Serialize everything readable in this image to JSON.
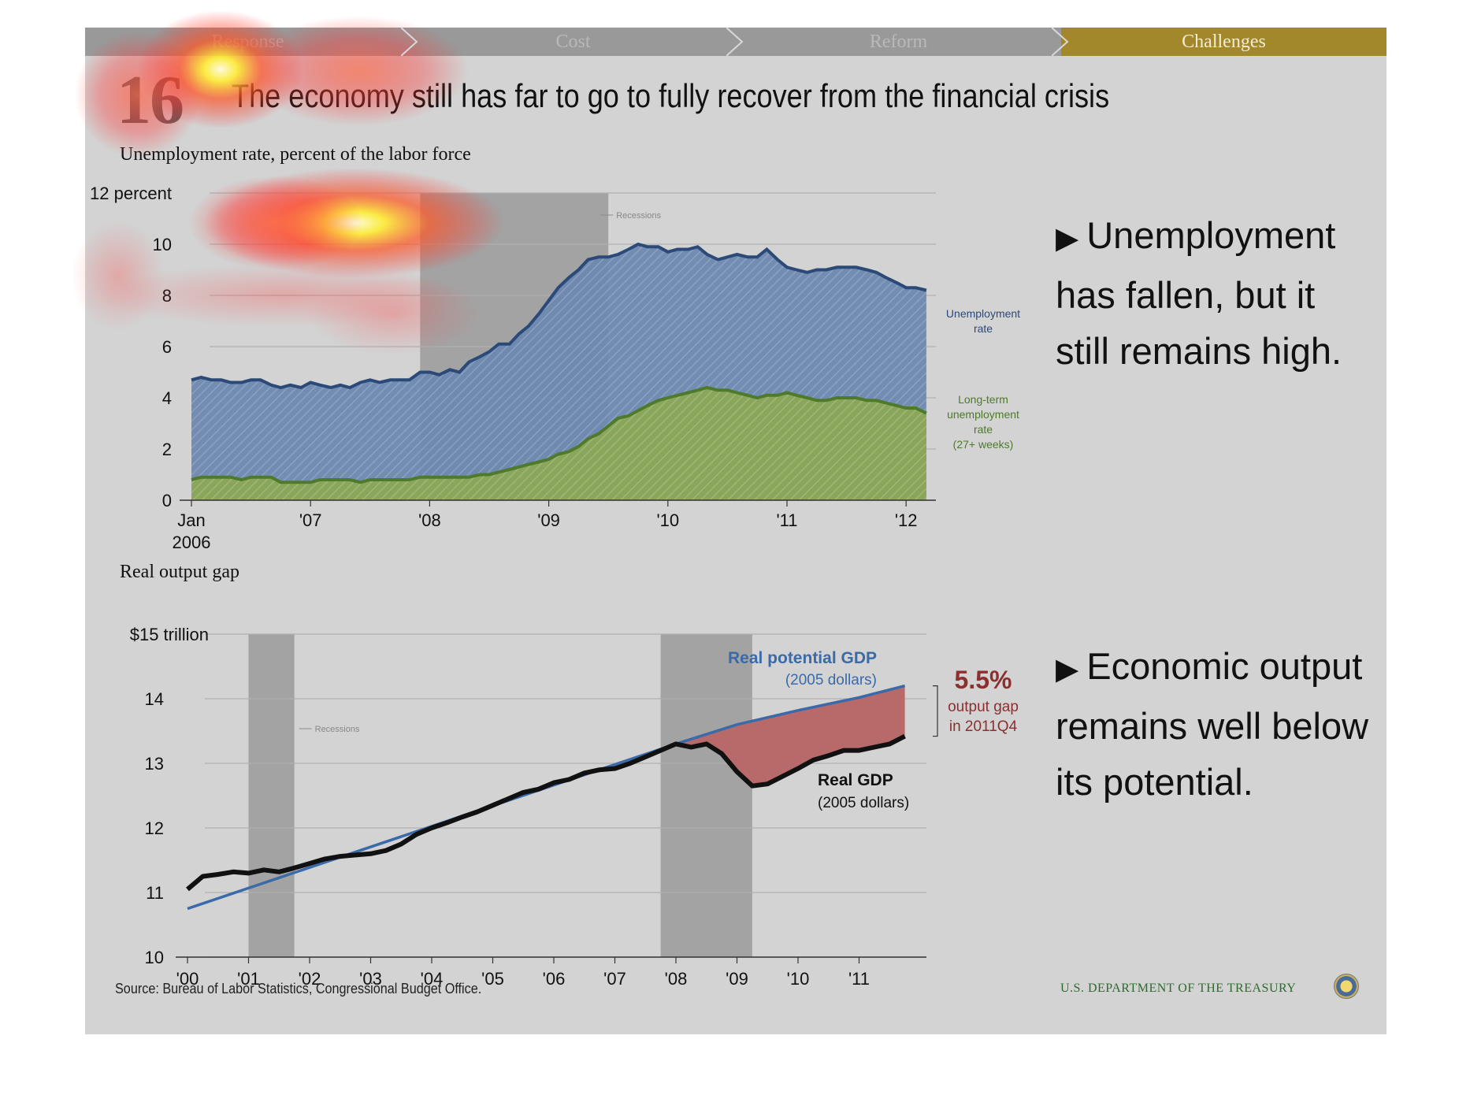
{
  "nav": {
    "tabs": [
      {
        "label": "Response",
        "active": false
      },
      {
        "label": "Cost",
        "active": false
      },
      {
        "label": "Reform",
        "active": false
      },
      {
        "label": "Challenges",
        "active": true
      }
    ]
  },
  "slide": {
    "number": "16",
    "title": "The economy still has far to go to fully recover from the financial crisis"
  },
  "bullets": [
    {
      "marker": "▶",
      "text": "Unemployment has fallen, but it still remains high."
    },
    {
      "marker": "▶",
      "text": "Economic output remains well below its potential."
    }
  ],
  "footer": {
    "source": "Source: Bureau of Labor Statistics, Congressional Budget Office.",
    "agency": "U.S. DEPARTMENT OF THE TREASURY"
  },
  "colors": {
    "unemployment_fill": "#6e88b0",
    "unemployment_line": "#2c4a78",
    "longterm_fill": "#8aa65a",
    "longterm_line": "#4e7a2c",
    "recession": "#a3a3a3",
    "potential_gdp": "#3a6aa8",
    "real_gdp": "#111111",
    "gap_fill": "#b86a6a",
    "gap_text": "#8b2f2f",
    "active_tab": "#a2882b",
    "background": "#d3d3d3"
  },
  "chart_data": [
    {
      "type": "area",
      "title": "Unemployment rate, percent of the labor force",
      "ytick_labels": [
        "0",
        "2",
        "4",
        "6",
        "8",
        "10",
        "12 percent"
      ],
      "yticks": [
        0,
        2,
        4,
        6,
        8,
        10,
        12
      ],
      "ylim": [
        0,
        12
      ],
      "xlim": [
        2006.0,
        2012.25
      ],
      "xtick_labels": [
        {
          "x": 2006.0,
          "line1": "Jan",
          "line2": "2006"
        },
        {
          "x": 2007.0,
          "line1": "'07",
          "line2": ""
        },
        {
          "x": 2008.0,
          "line1": "'08",
          "line2": ""
        },
        {
          "x": 2009.0,
          "line1": "'09",
          "line2": ""
        },
        {
          "x": 2010.0,
          "line1": "'10",
          "line2": ""
        },
        {
          "x": 2011.0,
          "line1": "'11",
          "line2": ""
        },
        {
          "x": 2012.0,
          "line1": "'12",
          "line2": ""
        }
      ],
      "recession": {
        "start": 2007.92,
        "end": 2009.5,
        "label": "Recessions"
      },
      "grid": true,
      "series": [
        {
          "name": "Unemployment rate",
          "x": [
            2006.0,
            2006.08,
            2006.17,
            2006.25,
            2006.33,
            2006.42,
            2006.5,
            2006.58,
            2006.67,
            2006.75,
            2006.83,
            2006.92,
            2007.0,
            2007.08,
            2007.17,
            2007.25,
            2007.33,
            2007.42,
            2007.5,
            2007.58,
            2007.67,
            2007.75,
            2007.83,
            2007.92,
            2008.0,
            2008.08,
            2008.17,
            2008.25,
            2008.33,
            2008.42,
            2008.5,
            2008.58,
            2008.67,
            2008.75,
            2008.83,
            2008.92,
            2009.0,
            2009.08,
            2009.17,
            2009.25,
            2009.33,
            2009.42,
            2009.5,
            2009.58,
            2009.67,
            2009.75,
            2009.83,
            2009.92,
            2010.0,
            2010.08,
            2010.17,
            2010.25,
            2010.33,
            2010.42,
            2010.5,
            2010.58,
            2010.67,
            2010.75,
            2010.83,
            2010.92,
            2011.0,
            2011.08,
            2011.17,
            2011.25,
            2011.33,
            2011.42,
            2011.5,
            2011.58,
            2011.67,
            2011.75,
            2011.83,
            2011.92,
            2012.0,
            2012.08,
            2012.17
          ],
          "values": [
            4.7,
            4.8,
            4.7,
            4.7,
            4.6,
            4.6,
            4.7,
            4.7,
            4.5,
            4.4,
            4.5,
            4.4,
            4.6,
            4.5,
            4.4,
            4.5,
            4.4,
            4.6,
            4.7,
            4.6,
            4.7,
            4.7,
            4.7,
            5.0,
            5.0,
            4.9,
            5.1,
            5.0,
            5.4,
            5.6,
            5.8,
            6.1,
            6.1,
            6.5,
            6.8,
            7.3,
            7.8,
            8.3,
            8.7,
            9.0,
            9.4,
            9.5,
            9.5,
            9.6,
            9.8,
            10.0,
            9.9,
            9.9,
            9.7,
            9.8,
            9.8,
            9.9,
            9.6,
            9.4,
            9.5,
            9.6,
            9.5,
            9.5,
            9.8,
            9.4,
            9.1,
            9.0,
            8.9,
            9.0,
            9.0,
            9.1,
            9.1,
            9.1,
            9.0,
            8.9,
            8.7,
            8.5,
            8.3,
            8.3,
            8.2
          ]
        },
        {
          "name": "Long-term unemployment rate (27+ weeks)",
          "x": [
            2006.0,
            2006.08,
            2006.17,
            2006.25,
            2006.33,
            2006.42,
            2006.5,
            2006.58,
            2006.67,
            2006.75,
            2006.83,
            2006.92,
            2007.0,
            2007.08,
            2007.17,
            2007.25,
            2007.33,
            2007.42,
            2007.5,
            2007.58,
            2007.67,
            2007.75,
            2007.83,
            2007.92,
            2008.0,
            2008.08,
            2008.17,
            2008.25,
            2008.33,
            2008.42,
            2008.5,
            2008.58,
            2008.67,
            2008.75,
            2008.83,
            2008.92,
            2009.0,
            2009.08,
            2009.17,
            2009.25,
            2009.33,
            2009.42,
            2009.5,
            2009.58,
            2009.67,
            2009.75,
            2009.83,
            2009.92,
            2010.0,
            2010.08,
            2010.17,
            2010.25,
            2010.33,
            2010.42,
            2010.5,
            2010.58,
            2010.67,
            2010.75,
            2010.83,
            2010.92,
            2011.0,
            2011.08,
            2011.17,
            2011.25,
            2011.33,
            2011.42,
            2011.5,
            2011.58,
            2011.67,
            2011.75,
            2011.83,
            2011.92,
            2012.0,
            2012.08,
            2012.17
          ],
          "values": [
            0.8,
            0.9,
            0.9,
            0.9,
            0.9,
            0.8,
            0.9,
            0.9,
            0.9,
            0.7,
            0.7,
            0.7,
            0.7,
            0.8,
            0.8,
            0.8,
            0.8,
            0.7,
            0.8,
            0.8,
            0.8,
            0.8,
            0.8,
            0.9,
            0.9,
            0.9,
            0.9,
            0.9,
            0.9,
            1.0,
            1.0,
            1.1,
            1.2,
            1.3,
            1.4,
            1.5,
            1.6,
            1.8,
            1.9,
            2.1,
            2.4,
            2.6,
            2.9,
            3.2,
            3.3,
            3.5,
            3.7,
            3.9,
            4.0,
            4.1,
            4.2,
            4.3,
            4.4,
            4.3,
            4.3,
            4.2,
            4.1,
            4.0,
            4.1,
            4.1,
            4.2,
            4.1,
            4.0,
            3.9,
            3.9,
            4.0,
            4.0,
            4.0,
            3.9,
            3.9,
            3.8,
            3.7,
            3.6,
            3.6,
            3.4
          ]
        }
      ],
      "labels": {
        "unemployment": [
          "Unemployment",
          "rate"
        ],
        "longterm": [
          "Long-term",
          "unemployment",
          "rate",
          "(27+ weeks)"
        ]
      }
    },
    {
      "type": "line",
      "title": "Real output gap",
      "ytick_labels": [
        "10",
        "11",
        "12",
        "13",
        "14",
        "$15 trillion"
      ],
      "yticks": [
        10,
        11,
        12,
        13,
        14,
        15
      ],
      "ylim": [
        10,
        15
      ],
      "xlim": [
        2000.0,
        2012.0
      ],
      "xtick_labels": [
        {
          "x": 2000,
          "label": "'00"
        },
        {
          "x": 2001,
          "label": "'01"
        },
        {
          "x": 2002,
          "label": "'02"
        },
        {
          "x": 2003,
          "label": "'03"
        },
        {
          "x": 2004,
          "label": "'04"
        },
        {
          "x": 2005,
          "label": "'05"
        },
        {
          "x": 2006,
          "label": "'06"
        },
        {
          "x": 2007,
          "label": "'07"
        },
        {
          "x": 2008,
          "label": "'08"
        },
        {
          "x": 2009,
          "label": "'09"
        },
        {
          "x": 2010,
          "label": "'10"
        },
        {
          "x": 2011,
          "label": "'11"
        }
      ],
      "recessions": [
        {
          "start": 2001.0,
          "end": 2001.75
        },
        {
          "start": 2007.75,
          "end": 2009.25
        }
      ],
      "recession_label": "Recessions",
      "grid": true,
      "series": [
        {
          "name": "Real potential GDP (2005 dollars)",
          "x": [
            2000.0,
            2008.0,
            2009.0,
            2010.0,
            2011.0,
            2011.75
          ],
          "values": [
            10.75,
            13.3,
            13.6,
            13.82,
            14.02,
            14.2
          ]
        },
        {
          "name": "Real GDP (2005 dollars)",
          "x": [
            2000.0,
            2000.25,
            2000.5,
            2000.75,
            2001.0,
            2001.25,
            2001.5,
            2001.75,
            2002.0,
            2002.25,
            2002.5,
            2002.75,
            2003.0,
            2003.25,
            2003.5,
            2003.75,
            2004.0,
            2004.25,
            2004.5,
            2004.75,
            2005.0,
            2005.25,
            2005.5,
            2005.75,
            2006.0,
            2006.25,
            2006.5,
            2006.75,
            2007.0,
            2007.25,
            2007.5,
            2007.75,
            2008.0,
            2008.25,
            2008.5,
            2008.75,
            2009.0,
            2009.25,
            2009.5,
            2009.75,
            2010.0,
            2010.25,
            2010.5,
            2010.75,
            2011.0,
            2011.25,
            2011.5,
            2011.75
          ],
          "values": [
            11.05,
            11.25,
            11.28,
            11.32,
            11.3,
            11.35,
            11.32,
            11.38,
            11.45,
            11.52,
            11.56,
            11.58,
            11.6,
            11.65,
            11.75,
            11.9,
            12.0,
            12.08,
            12.17,
            12.25,
            12.35,
            12.45,
            12.55,
            12.6,
            12.7,
            12.75,
            12.85,
            12.9,
            12.92,
            13.0,
            13.1,
            13.2,
            13.3,
            13.25,
            13.3,
            13.15,
            12.87,
            12.65,
            12.68,
            12.8,
            12.92,
            13.05,
            13.12,
            13.2,
            13.2,
            13.25,
            13.3,
            13.42
          ]
        }
      ],
      "annotations": {
        "potential_label": "Real potential GDP",
        "potential_sub": "(2005 dollars)",
        "gdp_label": "Real GDP",
        "gdp_sub": "(2005 dollars)",
        "gap_value": "5.5%",
        "gap_line1": "output gap",
        "gap_line2": "in 2011Q4"
      }
    }
  ]
}
